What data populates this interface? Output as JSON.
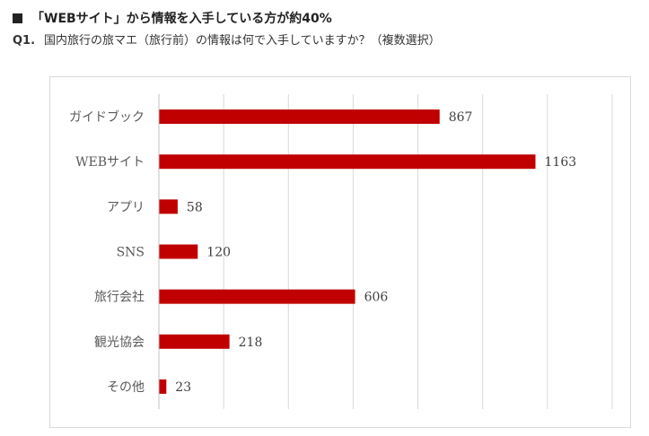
{
  "header": {
    "headline": "「WEBサイト」から情報を入手している方が約40%",
    "question_number": "Q1.",
    "question_text": "国内旅行の旅マエ（旅行前）の情報は何で入手していますか？（複数選択）"
  },
  "colors": {
    "bar": "#c00000",
    "grid": "#d9d9d9",
    "frame": "#d9d9d9"
  },
  "chart_data": {
    "type": "bar",
    "orientation": "horizontal",
    "title": "",
    "xlabel": "",
    "ylabel": "",
    "categories": [
      "ガイドブック",
      "WEBサイト",
      "アプリ",
      "SNS",
      "旅行会社",
      "観光協会",
      "その他"
    ],
    "values": [
      867,
      1163,
      58,
      120,
      606,
      218,
      23
    ],
    "xlim": [
      0,
      1400
    ],
    "grid": true,
    "legend": "none",
    "data_labels": true
  }
}
